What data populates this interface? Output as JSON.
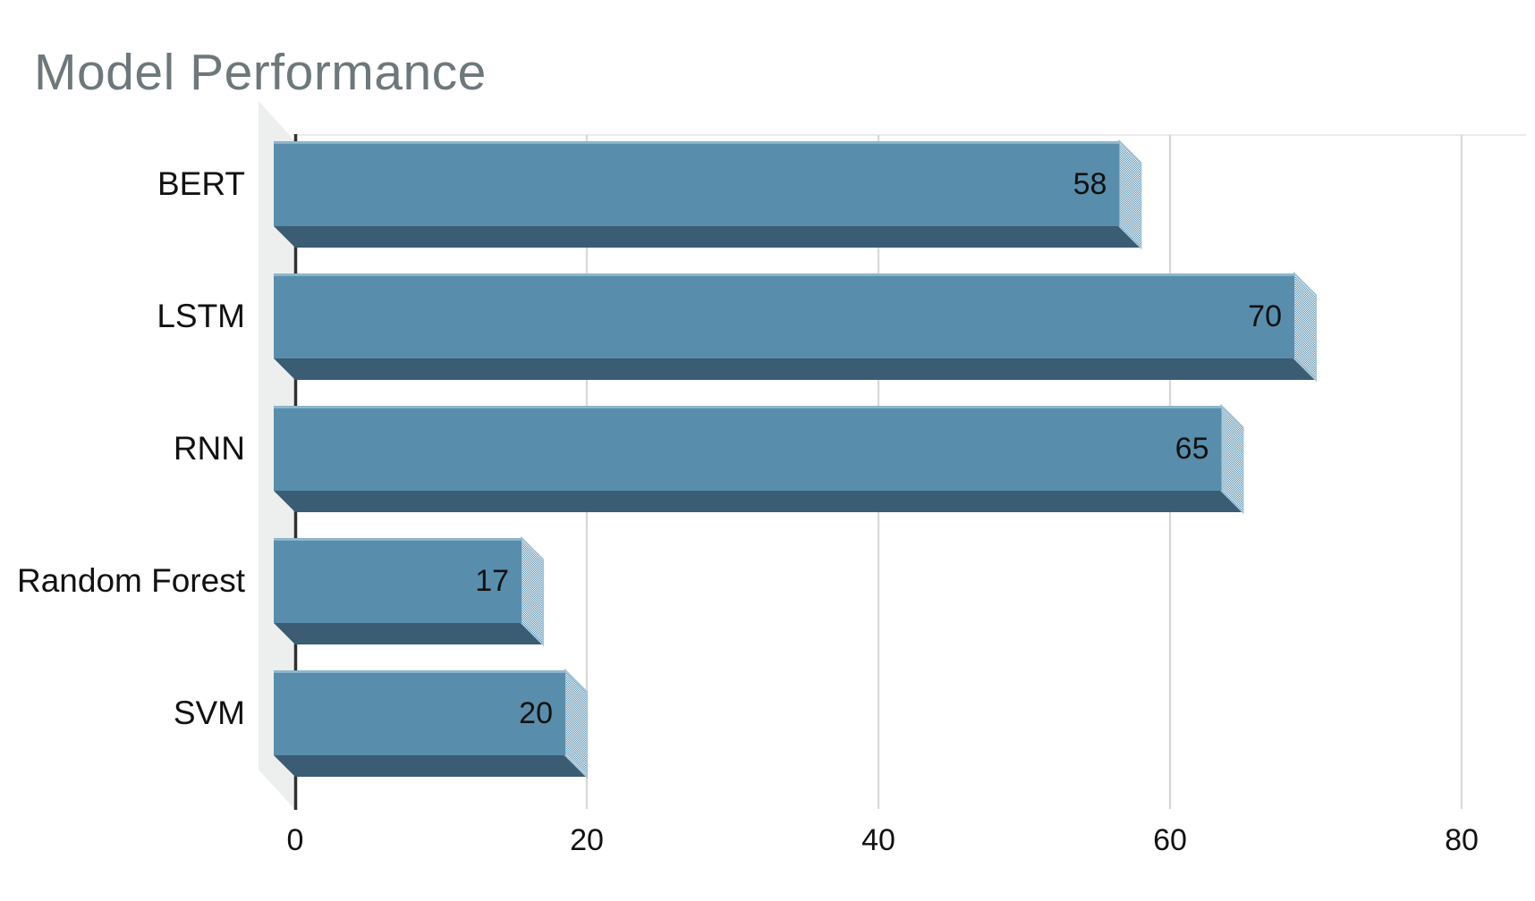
{
  "chart_data": {
    "type": "bar",
    "orientation": "horizontal",
    "style": "3d",
    "title": "Model Performance",
    "categories": [
      "BERT",
      "LSTM",
      "RNN",
      "Random Forest",
      "SVM"
    ],
    "values": [
      58,
      70,
      65,
      17,
      20
    ],
    "data_labels": [
      "58",
      "70",
      "65",
      "17",
      "20"
    ],
    "xlabel": "",
    "ylabel": "",
    "xlim": [
      0,
      80
    ],
    "x_ticks": [
      0,
      20,
      40,
      60,
      80
    ],
    "grid": "vertical-gridlines",
    "legend": "none",
    "colors": {
      "bar_front": "#588EAC",
      "bar_bottom_face": "#3B5D73",
      "bar_top_highlight": "#93BBD1",
      "bar_end_face_dither": "#588EAC",
      "bar_end_face_edge": "#A3C6DA",
      "wall": "#EDEFEF",
      "gridline": "#D9D9D9",
      "axis_line": "#303030",
      "plot_top_edge": "#ECECEC",
      "title_text": "#6E787B",
      "label_text": "#111111",
      "background": "#FFFFFF"
    }
  }
}
